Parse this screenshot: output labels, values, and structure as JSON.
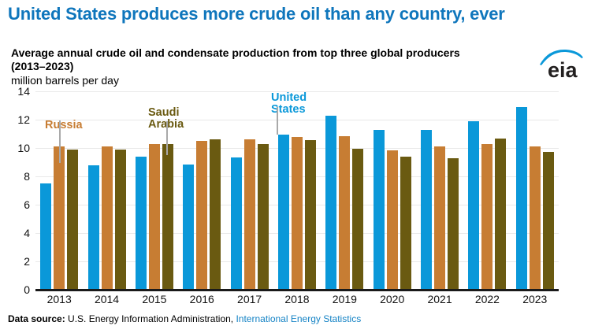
{
  "page": {
    "title": "United States produces more crude oil than any country, ever",
    "subtitle_line1": "Average annual crude oil and condensate production from top three global producers",
    "subtitle_line2": "(2013–2023)",
    "unit_label": "million barrels per day",
    "logo_text": "eia"
  },
  "colors": {
    "title_blue": "#0f76bc",
    "united_states": "#0a98d9",
    "russia": "#c77d33",
    "saudi_arabia": "#6a5a11",
    "link_blue": "#1583c5",
    "leader_gray": "#a9a9a9"
  },
  "chart_data": {
    "type": "bar",
    "title": "Average annual crude oil and condensate production from top three global producers (2013–2023)",
    "xlabel": "",
    "ylabel": "million barrels per day",
    "ylim": [
      0,
      14
    ],
    "yticks": [
      0,
      2,
      4,
      6,
      8,
      10,
      12,
      14
    ],
    "grid": true,
    "legend_position": "inline-annotations",
    "categories": [
      "2013",
      "2014",
      "2015",
      "2016",
      "2017",
      "2018",
      "2019",
      "2020",
      "2021",
      "2022",
      "2023"
    ],
    "series": [
      {
        "name": "United States",
        "color": "#0a98d9",
        "values": [
          7.5,
          8.8,
          9.4,
          8.85,
          9.35,
          10.95,
          12.25,
          11.3,
          11.25,
          11.9,
          12.9
        ]
      },
      {
        "name": "Russia",
        "color": "#c77d33",
        "values": [
          10.1,
          10.1,
          10.25,
          10.5,
          10.6,
          10.75,
          10.85,
          9.85,
          10.1,
          10.3,
          10.1
        ]
      },
      {
        "name": "Saudi Arabia",
        "color": "#6a5a11",
        "values": [
          9.9,
          9.9,
          10.3,
          10.6,
          10.3,
          10.55,
          9.95,
          9.4,
          9.3,
          10.65,
          9.7
        ]
      }
    ]
  },
  "annotations": [
    {
      "lines": [
        "Russia"
      ],
      "series": "Russia"
    },
    {
      "lines": [
        "Saudi",
        "Arabia"
      ],
      "series": "Saudi Arabia"
    },
    {
      "lines": [
        "United",
        "States"
      ],
      "series": "United States"
    }
  ],
  "footer": {
    "source_label": "Data source:",
    "source_text": " U.S. Energy Information Administration, ",
    "source_link": "International Energy Statistics"
  }
}
